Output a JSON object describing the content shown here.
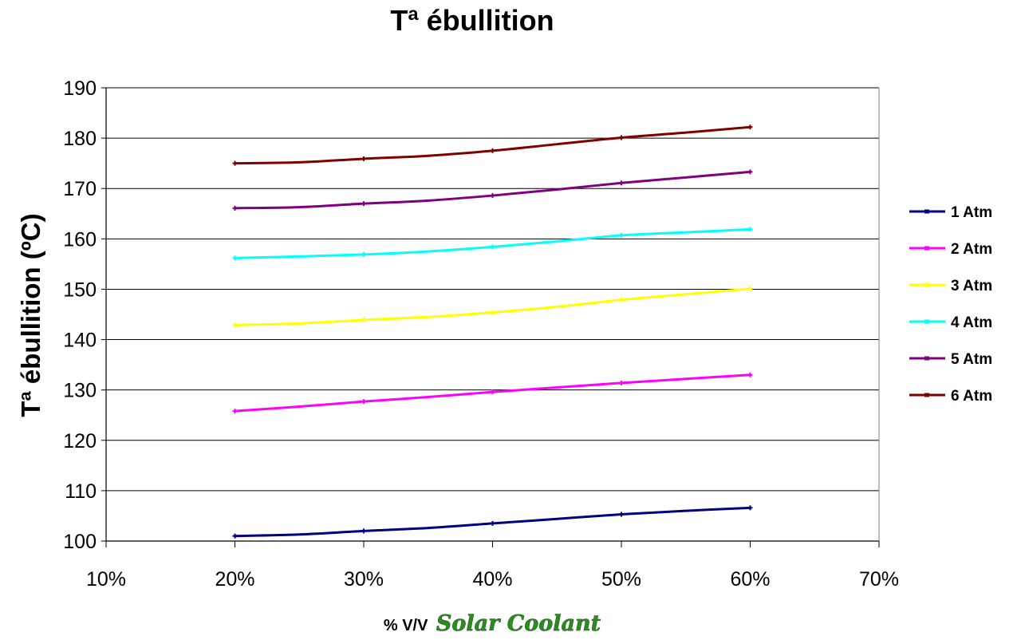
{
  "chart_data": {
    "type": "line",
    "title": "Tª ébullition",
    "ylabel": "Tª ébullition (ºC)",
    "xlabel_prefix": "% V/V",
    "xlabel_brand": "Solar Coolant",
    "x": [
      0.2,
      0.25,
      0.3,
      0.35,
      0.4,
      0.45,
      0.5,
      0.55,
      0.6
    ],
    "xlim": [
      0.1,
      0.7
    ],
    "ylim": [
      100,
      190
    ],
    "x_ticks": [
      "10%",
      "20%",
      "30%",
      "40%",
      "50%",
      "60%",
      "70%"
    ],
    "y_ticks": [
      "100",
      "110",
      "120",
      "130",
      "140",
      "150",
      "160",
      "170",
      "180",
      "190"
    ],
    "grid": "horizontal",
    "legend_position": "right",
    "series": [
      {
        "name": "1 Atm",
        "color": "#000080",
        "values": [
          101.0,
          101.3,
          102.0,
          102.6,
          103.5,
          104.4,
          105.3,
          106.0,
          106.6
        ]
      },
      {
        "name": "2 Atm",
        "color": "#ff00ff",
        "values": [
          125.8,
          126.7,
          127.7,
          128.6,
          129.6,
          130.5,
          131.4,
          132.2,
          133.0
        ]
      },
      {
        "name": "3 Atm",
        "color": "#ffff00",
        "values": [
          142.9,
          143.2,
          143.9,
          144.5,
          145.4,
          146.5,
          147.9,
          149.0,
          150.1
        ]
      },
      {
        "name": "4 Atm",
        "color": "#00ffff",
        "values": [
          156.2,
          156.5,
          156.9,
          157.5,
          158.4,
          159.5,
          160.7,
          161.3,
          161.9
        ]
      },
      {
        "name": "5 Atm",
        "color": "#800080",
        "values": [
          166.1,
          166.3,
          167.0,
          167.6,
          168.6,
          169.8,
          171.1,
          172.2,
          173.3
        ]
      },
      {
        "name": "6 Atm",
        "color": "#800000",
        "values": [
          175.0,
          175.2,
          175.9,
          176.5,
          177.5,
          178.8,
          180.1,
          181.1,
          182.2
        ]
      }
    ]
  }
}
